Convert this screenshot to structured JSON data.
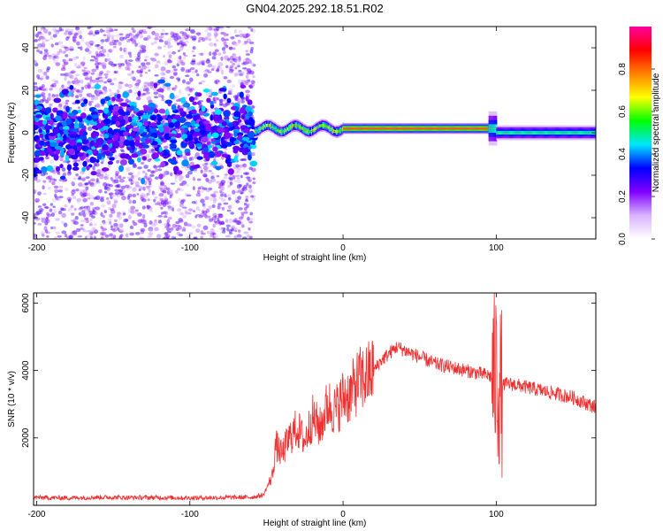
{
  "chart_data": [
    {
      "type": "heatmap",
      "title": "GN04.2025.292.18.51.R02",
      "xlabel": "Height of straight line (km)",
      "ylabel": "Frequency (Hz)",
      "xlim": [
        -202,
        165
      ],
      "ylim": [
        -50,
        50
      ],
      "xticks": [
        -200,
        -100,
        0,
        100
      ],
      "yticks": [
        -40,
        -20,
        0,
        20,
        40
      ],
      "colorbar": {
        "label": "Normalized spectral amplitude",
        "range": [
          0.0,
          1.0
        ],
        "ticks": [
          "0.0",
          "0.2",
          "0.4",
          "0.6",
          "0.8"
        ],
        "colors": [
          "#ffffff",
          "#d9b3ff",
          "#8000ff",
          "#0000ff",
          "#00e5ff",
          "#00ff00",
          "#ffff00",
          "#ff8000",
          "#ff0000",
          "#ff00a0"
        ]
      },
      "regions": [
        {
          "name": "noise",
          "x_range": [
            -202,
            -58
          ],
          "center_freq_hz": 0,
          "spread_hz": 50,
          "core_halfwidth_hz": 8,
          "max_amplitude": 0.45
        },
        {
          "name": "wander",
          "x_range": [
            -58,
            0
          ],
          "center_freq_hz": 2,
          "halfwidth_hz": 3,
          "max_amplitude": 0.9
        },
        {
          "name": "stable",
          "x_range": [
            0,
            95
          ],
          "center_freq_hz": 2,
          "halfwidth_hz": 2.5,
          "max_amplitude": 1.0
        },
        {
          "name": "flare",
          "x_range": [
            95,
            100
          ],
          "center_freq_hz": 2,
          "halfwidth_hz": 8,
          "max_amplitude": 0.6
        },
        {
          "name": "tail",
          "x_range": [
            100,
            165
          ],
          "center_freq_hz": 0,
          "halfwidth_hz": 3.5,
          "max_amplitude": 0.6
        }
      ]
    },
    {
      "type": "line",
      "xlabel": "Height of straight line (km)",
      "ylabel": "SNR (10 * v/v)",
      "xlim": [
        -202,
        165
      ],
      "ylim": [
        0,
        6300
      ],
      "xticks": [
        -200,
        -100,
        0,
        100
      ],
      "yticks": [
        2000,
        4000,
        6000
      ],
      "color": "#ee3030",
      "series": [
        {
          "name": "SNR",
          "x": [
            -202,
            -180,
            -160,
            -140,
            -120,
            -100,
            -80,
            -60,
            -52,
            -46,
            -44,
            -40,
            -35,
            -30,
            -25,
            -20,
            -15,
            -10,
            -5,
            0,
            5,
            10,
            15,
            20,
            25,
            30,
            35,
            40,
            45,
            50,
            55,
            60,
            70,
            80,
            90,
            95,
            97,
            100,
            103,
            105,
            110,
            120,
            130,
            140,
            150,
            155,
            160,
            165
          ],
          "y": [
            230,
            220,
            240,
            230,
            230,
            220,
            230,
            240,
            300,
            900,
            1800,
            1500,
            2000,
            2300,
            1900,
            2600,
            2300,
            3000,
            2800,
            3200,
            3300,
            3700,
            3800,
            4000,
            4300,
            4500,
            4700,
            4600,
            4500,
            4400,
            4300,
            4200,
            4100,
            4000,
            3900,
            3850,
            3800,
            3900,
            3300,
            3600,
            3600,
            3500,
            3400,
            3300,
            3200,
            3100,
            3000,
            2900
          ]
        }
      ],
      "annotations": [
        {
          "x": 100,
          "y_max": 6300,
          "y_min": 80,
          "note": "large oscillation near 100 km"
        }
      ]
    }
  ]
}
